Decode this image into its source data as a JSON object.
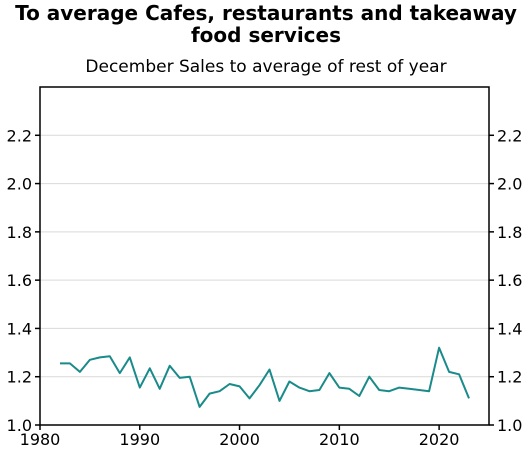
{
  "chart_data": {
    "type": "line",
    "title_line1": "To average Cafes, restaurants and takeaway",
    "title_line2": "food services",
    "subtitle": "December Sales to average of rest of year",
    "xlabel": "",
    "ylabel": "",
    "xlim": [
      1980,
      2025
    ],
    "ylim": [
      1.0,
      2.4
    ],
    "x_ticks": [
      "1980",
      "1990",
      "2000",
      "2010",
      "2020"
    ],
    "y_ticks": [
      "1.0",
      "1.2",
      "1.4",
      "1.6",
      "1.8",
      "2.0",
      "2.2"
    ],
    "grid": true,
    "series": [
      {
        "color": "#1a8a8a",
        "x": [
          1982,
          1983,
          1984,
          1985,
          1986,
          1987,
          1988,
          1989,
          1990,
          1991,
          1992,
          1993,
          1994,
          1995,
          1996,
          1997,
          1998,
          1999,
          2000,
          2001,
          2002,
          2003,
          2004,
          2005,
          2006,
          2007,
          2008,
          2009,
          2010,
          2011,
          2012,
          2013,
          2014,
          2015,
          2016,
          2017,
          2018,
          2019,
          2020,
          2021,
          2022,
          2023
        ],
        "y": [
          1.255,
          1.255,
          1.22,
          1.27,
          1.28,
          1.285,
          1.215,
          1.28,
          1.155,
          1.235,
          1.15,
          1.245,
          1.195,
          1.2,
          1.075,
          1.13,
          1.14,
          1.17,
          1.16,
          1.11,
          1.165,
          1.23,
          1.1,
          1.18,
          1.155,
          1.14,
          1.145,
          1.215,
          1.155,
          1.15,
          1.12,
          1.2,
          1.145,
          1.14,
          1.155,
          1.15,
          1.145,
          1.14,
          1.32,
          1.22,
          1.21,
          1.11
        ]
      }
    ]
  }
}
